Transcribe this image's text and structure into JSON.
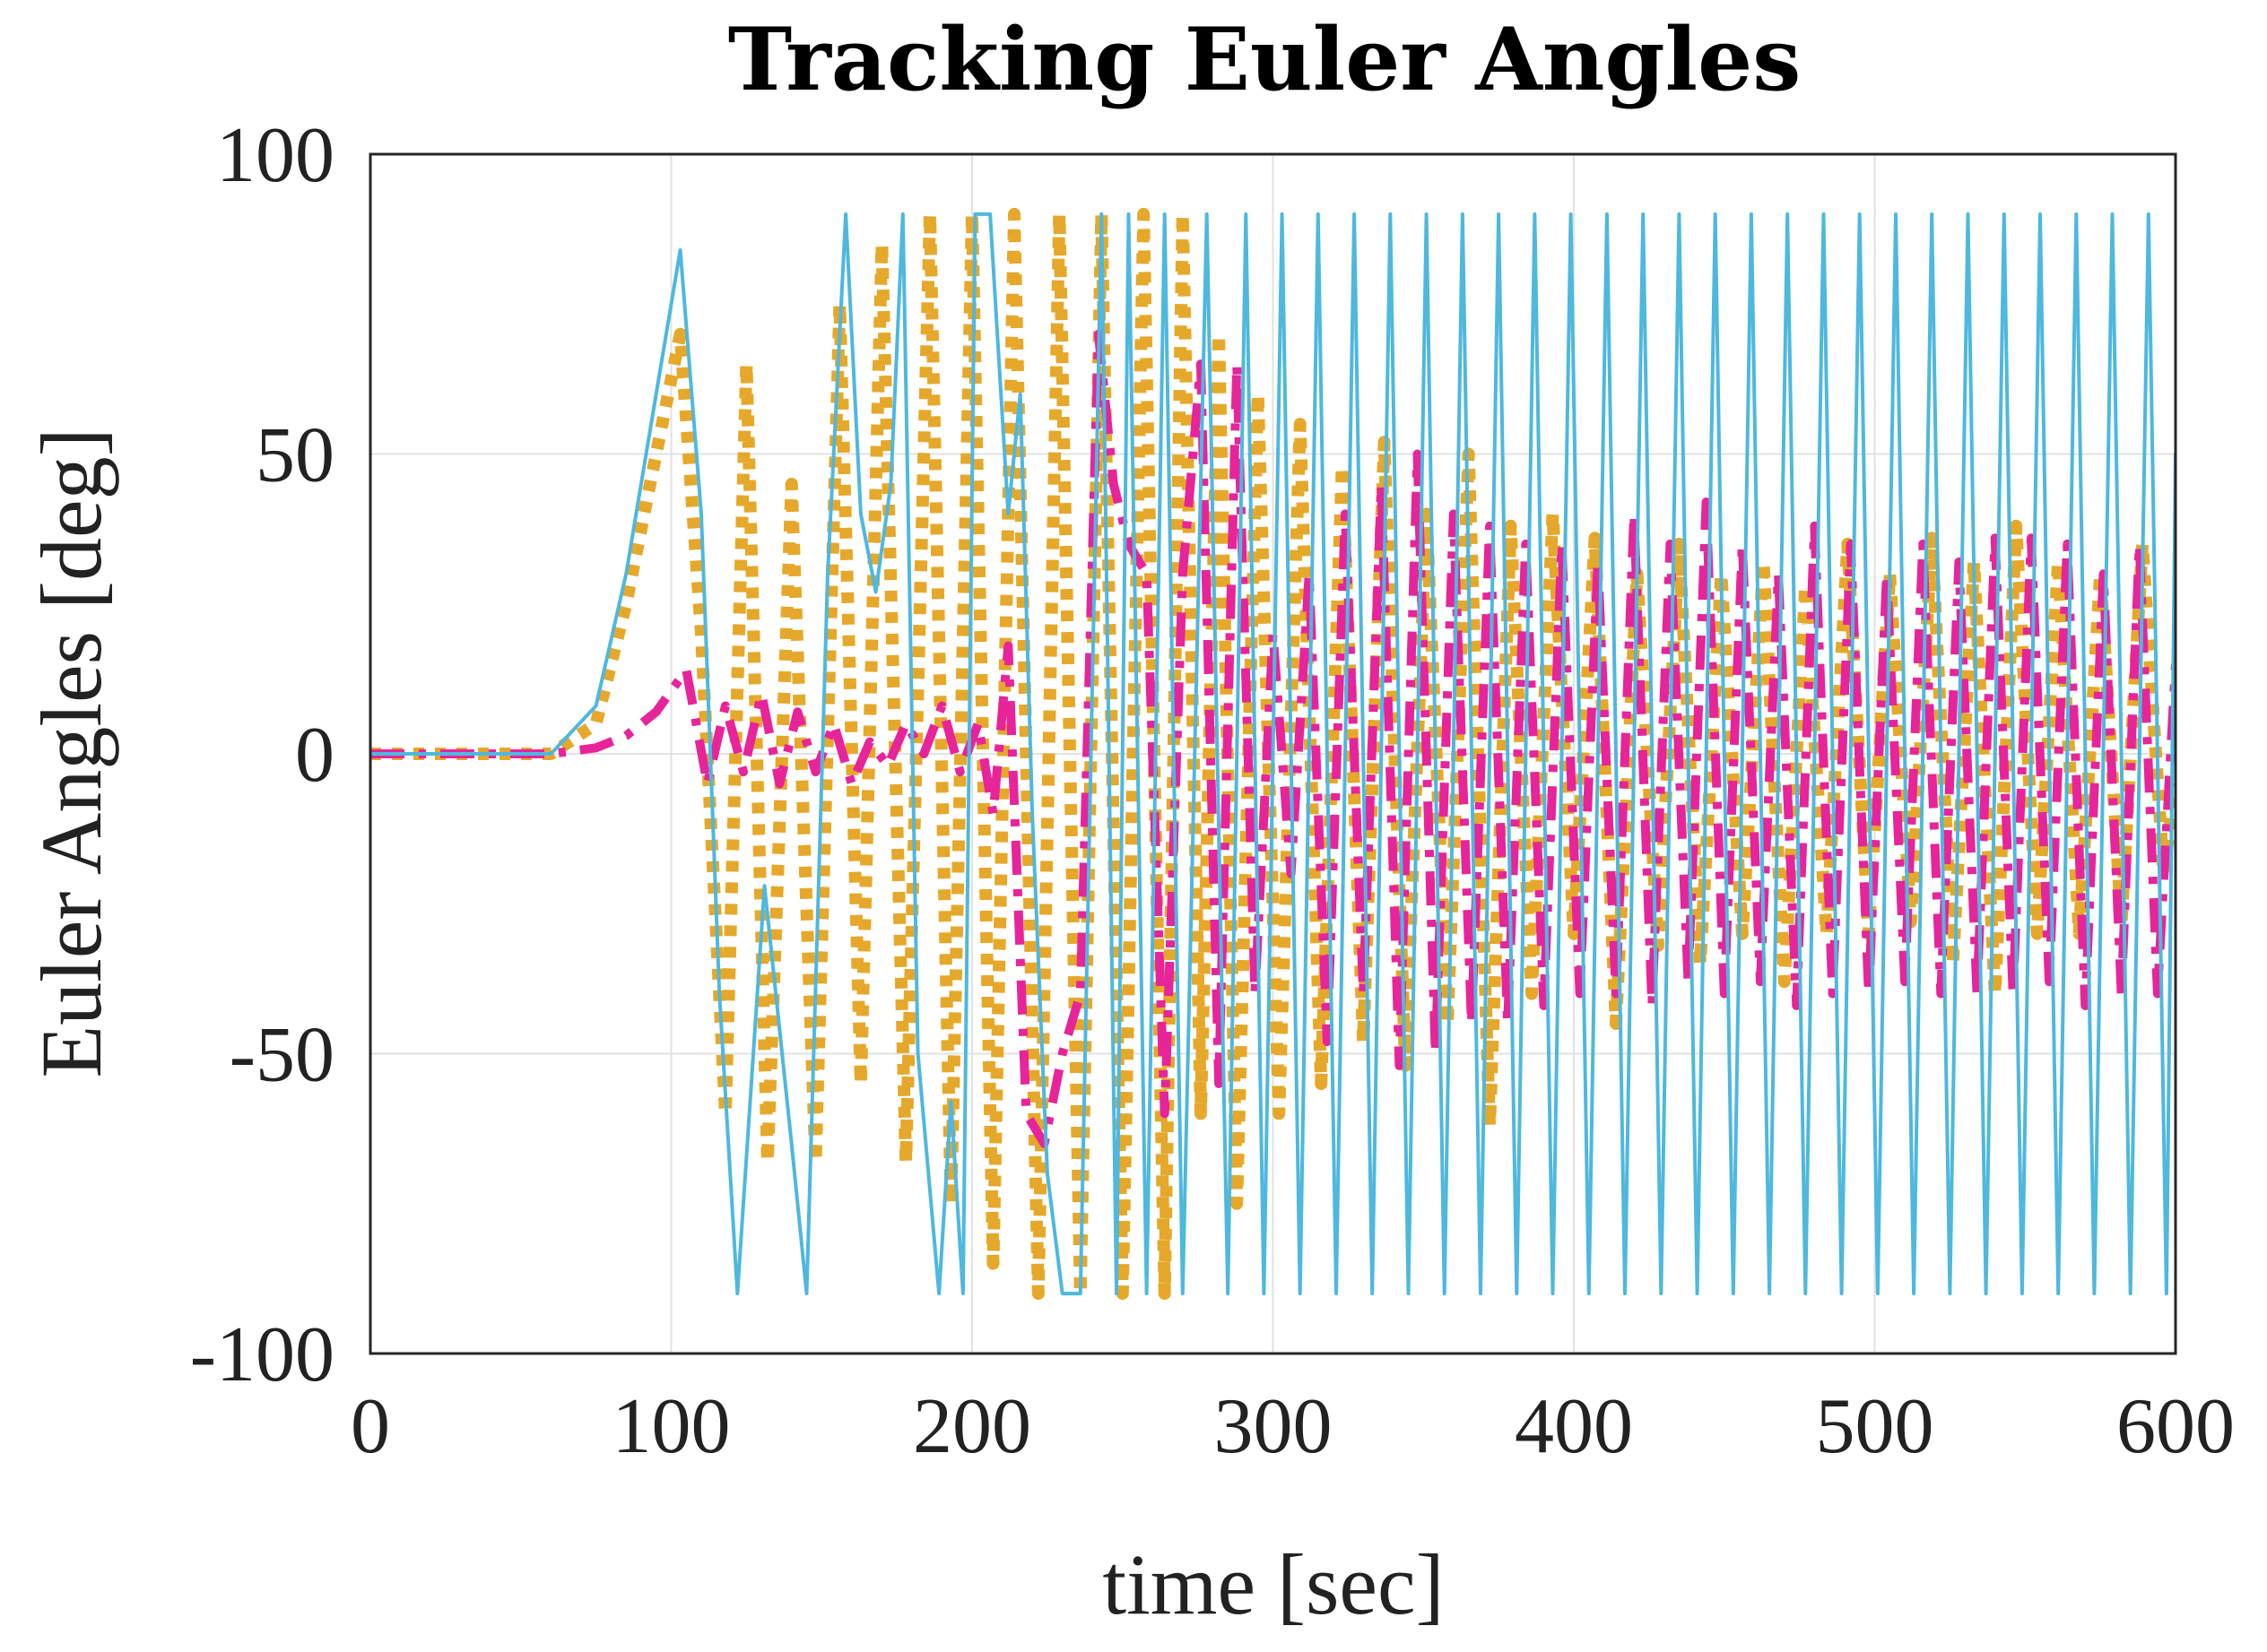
{
  "chart_data": {
    "type": "line",
    "title": "Tracking Euler Angles",
    "xlabel": "time [sec]",
    "ylabel": "Euler Angles [deg]",
    "xlim": [
      0,
      600
    ],
    "ylim": [
      -100,
      100
    ],
    "xticks": [
      0,
      100,
      200,
      300,
      400,
      500,
      600
    ],
    "yticks": [
      -100,
      -50,
      0,
      50,
      100
    ],
    "xtick_labels": [
      "0",
      "100",
      "200",
      "300",
      "400",
      "500",
      "600"
    ],
    "ytick_labels": [
      "-100",
      "-50",
      "0",
      "50",
      "100"
    ],
    "grid": true,
    "legend": "none",
    "series": [
      {
        "name": "cyan-solid",
        "color": "#4db8e0",
        "style": "solid",
        "x": [
          0,
          60,
          75,
          85,
          95,
          103,
          110,
          116,
          122,
          131,
          140,
          145,
          152,
          158,
          163,
          168,
          173,
          177,
          182,
          189,
          193,
          197,
          201,
          206,
          212,
          216,
          220,
          225,
          230,
          236,
          243,
          248,
          252,
          258,
          264,
          270,
          278,
          285,
          291,
          297,
          303,
          309,
          315,
          321,
          327,
          333,
          339,
          345,
          351,
          357,
          363,
          369,
          375,
          381,
          387,
          393,
          399,
          405,
          411,
          417,
          423,
          429,
          435,
          441,
          447,
          453,
          459,
          465,
          471,
          477,
          483,
          489,
          495,
          501,
          507,
          513,
          519,
          525,
          531,
          537,
          543,
          549,
          555,
          561,
          567,
          573,
          579,
          585,
          591,
          597,
          600
        ],
        "y": [
          0,
          0,
          8,
          30,
          60,
          84,
          40,
          -40,
          -90,
          -22,
          -65,
          -90,
          30,
          90,
          40,
          27,
          45,
          90,
          -50,
          -90,
          -58,
          -90,
          90,
          90,
          40,
          60,
          -10,
          -70,
          -90,
          -90,
          90,
          -90,
          90,
          -90,
          90,
          -90,
          90,
          -90,
          90,
          -90,
          90,
          -90,
          90,
          -90,
          90,
          -90,
          90,
          -90,
          90,
          -90,
          90,
          -90,
          90,
          -90,
          90,
          -90,
          90,
          -90,
          90,
          -90,
          90,
          -90,
          90,
          -90,
          90,
          -90,
          90,
          -90,
          90,
          -90,
          90,
          -90,
          90,
          -90,
          90,
          -90,
          90,
          -90,
          90,
          -90,
          90,
          -90,
          90,
          -90,
          90,
          -90,
          90,
          -90,
          90,
          -90,
          50
        ]
      },
      {
        "name": "orange-dotted",
        "color": "#e6a82a",
        "style": "dotted",
        "x": [
          0,
          60,
          75,
          85,
          95,
          103,
          110,
          118,
          125,
          132,
          140,
          148,
          156,
          163,
          170,
          178,
          186,
          193,
          200,
          207,
          214,
          222,
          229,
          236,
          243,
          250,
          257,
          264,
          270,
          276,
          282,
          288,
          295,
          302,
          309,
          316,
          323,
          330,
          337,
          344,
          351,
          358,
          365,
          372,
          379,
          386,
          393,
          400,
          407,
          414,
          421,
          428,
          435,
          442,
          449,
          456,
          463,
          470,
          477,
          484,
          491,
          498,
          505,
          512,
          519,
          526,
          533,
          540,
          547,
          554,
          561,
          568,
          575,
          582,
          589,
          596,
          600
        ],
        "y": [
          0,
          0,
          5,
          25,
          50,
          70,
          20,
          -60,
          65,
          -68,
          45,
          -68,
          75,
          -55,
          85,
          -68,
          90,
          -75,
          90,
          -85,
          90,
          -90,
          90,
          -90,
          90,
          -90,
          90,
          -90,
          90,
          -60,
          70,
          -75,
          60,
          -60,
          55,
          -55,
          48,
          -48,
          52,
          -52,
          40,
          -45,
          50,
          -62,
          38,
          -40,
          40,
          -30,
          36,
          -45,
          30,
          -32,
          35,
          -35,
          30,
          -30,
          32,
          -38,
          28,
          -30,
          35,
          -30,
          30,
          -28,
          36,
          -35,
          32,
          -40,
          38,
          -30,
          32,
          -30,
          30,
          -28,
          35,
          -20,
          -5
        ]
      },
      {
        "name": "magenta-dashdot",
        "color": "#e8249a",
        "style": "dashdot",
        "x": [
          0,
          60,
          75,
          85,
          95,
          105,
          112,
          118,
          124,
          130,
          136,
          142,
          148,
          154,
          160,
          166,
          172,
          178,
          184,
          190,
          196,
          202,
          207,
          212,
          218,
          224,
          230,
          236,
          242,
          247,
          252,
          258,
          264,
          270,
          276,
          282,
          288,
          294,
          300,
          306,
          312,
          318,
          324,
          330,
          336,
          342,
          348,
          354,
          360,
          366,
          372,
          378,
          384,
          390,
          396,
          402,
          408,
          414,
          420,
          426,
          432,
          438,
          444,
          450,
          456,
          462,
          468,
          474,
          480,
          486,
          492,
          498,
          504,
          510,
          516,
          522,
          528,
          534,
          540,
          546,
          552,
          558,
          564,
          570,
          576,
          582,
          588,
          594,
          600
        ],
        "y": [
          0,
          0,
          1,
          3,
          7,
          14,
          -5,
          8,
          -3,
          10,
          -5,
          7,
          -3,
          5,
          -5,
          2,
          -2,
          5,
          0,
          8,
          -3,
          5,
          -10,
          18,
          -60,
          -65,
          -50,
          -40,
          70,
          45,
          35,
          30,
          -60,
          30,
          65,
          -55,
          65,
          -40,
          20,
          -20,
          30,
          -48,
          40,
          -40,
          45,
          -52,
          50,
          -50,
          40,
          -45,
          38,
          -45,
          35,
          -42,
          35,
          -40,
          32,
          -40,
          40,
          -42,
          35,
          -38,
          42,
          -40,
          35,
          -38,
          30,
          -42,
          38,
          -40,
          35,
          -40,
          30,
          -38,
          35,
          -40,
          32,
          -40,
          36,
          -40,
          36,
          -38,
          35,
          -42,
          30,
          -40,
          35,
          -40,
          15
        ]
      }
    ]
  }
}
